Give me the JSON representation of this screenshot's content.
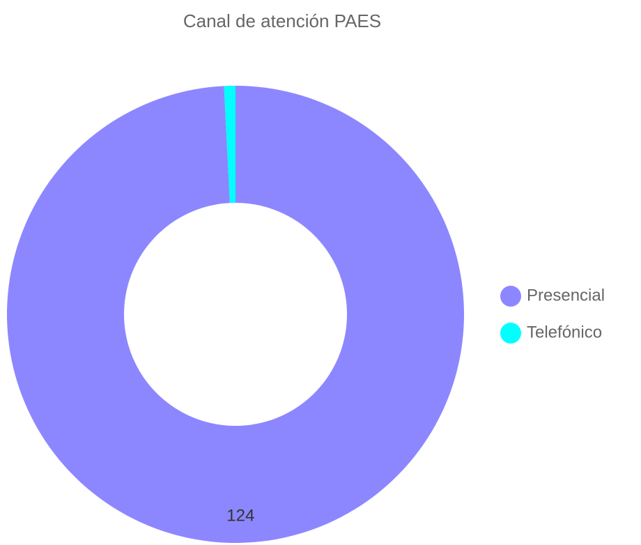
{
  "chart_data": {
    "type": "donut",
    "title": "Canal de atención PAES",
    "categories": [
      "Presencial",
      "Telefónico"
    ],
    "values": [
      124,
      1
    ],
    "colors": [
      "#8c87ff",
      "#00ffff"
    ],
    "legend": "right"
  }
}
